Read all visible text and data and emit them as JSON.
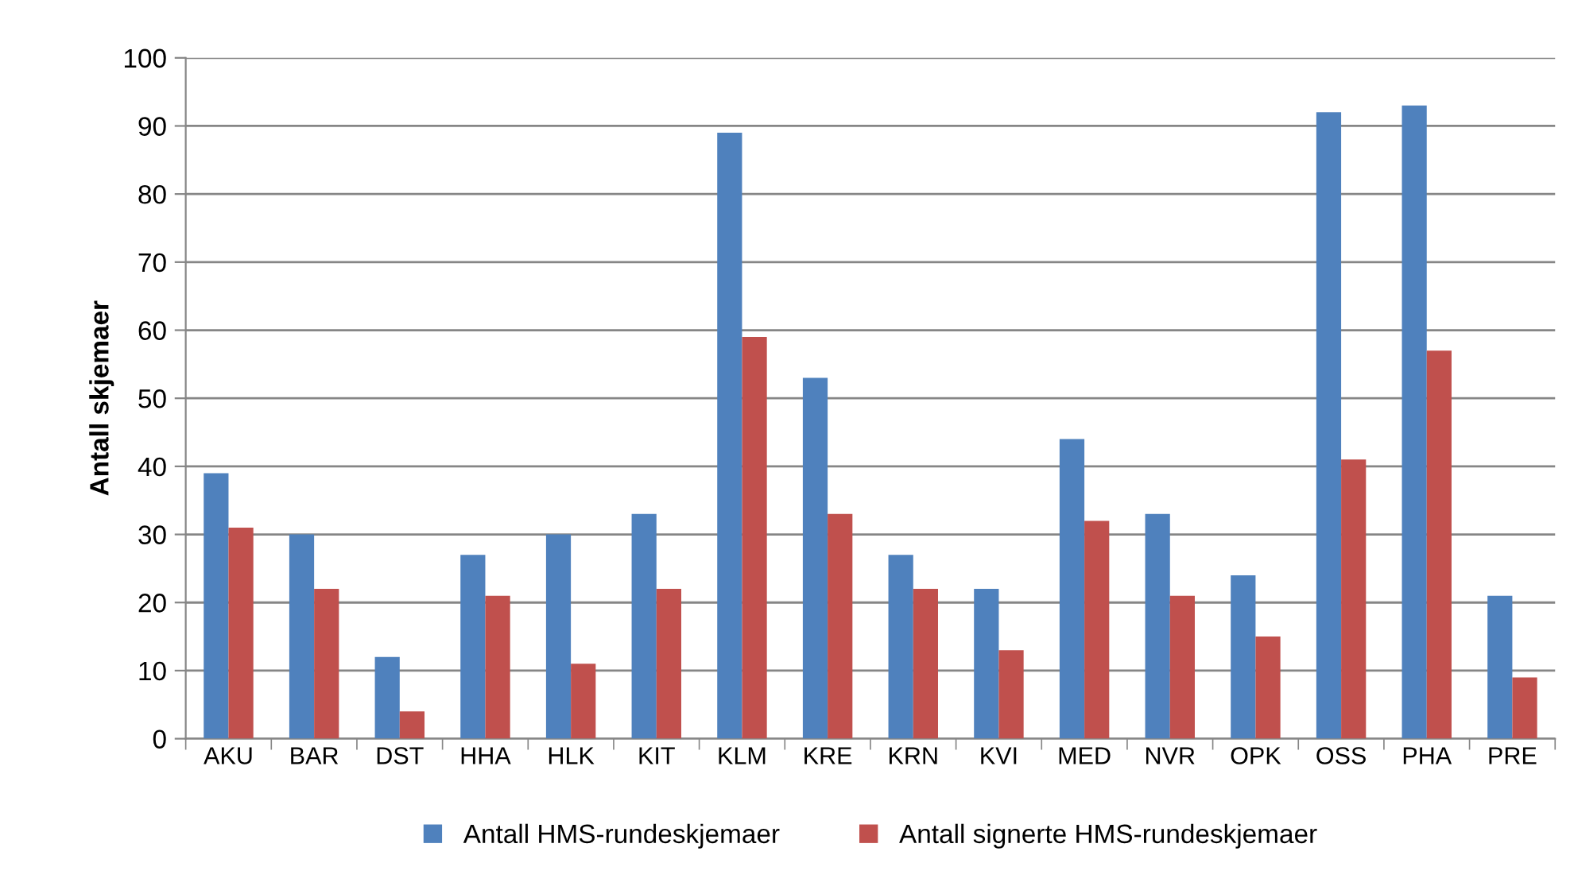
{
  "chart_data": {
    "type": "bar",
    "ylabel": "Antall skjemaer",
    "categories": [
      "AKU",
      "BAR",
      "DST",
      "HHA",
      "HLK",
      "KIT",
      "KLM",
      "KRE",
      "KRN",
      "KVI",
      "MED",
      "NVR",
      "OPK",
      "OSS",
      "PHA",
      "PRE"
    ],
    "series": [
      {
        "name": "Antall HMS-rundeskjemaer",
        "color": "#4f81bd",
        "values": [
          39,
          30,
          12,
          27,
          30,
          33,
          89,
          53,
          27,
          22,
          44,
          33,
          24,
          92,
          93,
          21
        ]
      },
      {
        "name": "Antall signerte HMS-rundeskjemaer",
        "color": "#c0504d",
        "values": [
          31,
          22,
          4,
          21,
          11,
          22,
          59,
          33,
          22,
          13,
          32,
          21,
          15,
          41,
          57,
          9
        ]
      }
    ],
    "ylim": [
      0,
      100
    ],
    "yticks": [
      0,
      10,
      20,
      30,
      40,
      50,
      60,
      70,
      80,
      90,
      100
    ],
    "grid": "y",
    "legend": "bottom"
  }
}
